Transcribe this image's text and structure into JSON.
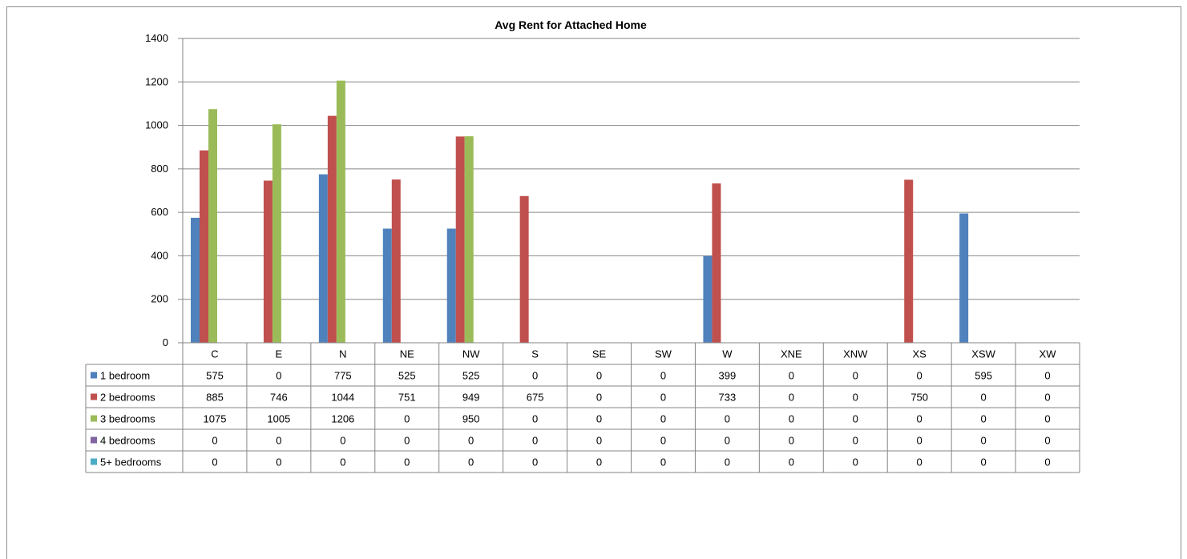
{
  "chart_data": {
    "type": "bar",
    "title": "Avg Rent for Attached Home",
    "categories": [
      "C",
      "E",
      "N",
      "NE",
      "NW",
      "S",
      "SE",
      "SW",
      "W",
      "XNE",
      "XNW",
      "XS",
      "XSW",
      "XW"
    ],
    "ylim": [
      0,
      1400
    ],
    "yticks": [
      0,
      200,
      400,
      600,
      800,
      1000,
      1200,
      1400
    ],
    "grid": true,
    "legend": "data-table",
    "series": [
      {
        "name": "1 bedroom",
        "color": "#4f81bd",
        "values": [
          575,
          0,
          775,
          525,
          525,
          0,
          0,
          0,
          399,
          0,
          0,
          0,
          595,
          0
        ]
      },
      {
        "name": "2 bedrooms",
        "color": "#c0504d",
        "values": [
          885,
          746,
          1044,
          751,
          949,
          675,
          0,
          0,
          733,
          0,
          0,
          750,
          0,
          0
        ]
      },
      {
        "name": "3 bedrooms",
        "color": "#9bbb59",
        "values": [
          1075,
          1005,
          1206,
          0,
          950,
          0,
          0,
          0,
          0,
          0,
          0,
          0,
          0,
          0
        ]
      },
      {
        "name": "4 bedrooms",
        "color": "#8064a2",
        "values": [
          0,
          0,
          0,
          0,
          0,
          0,
          0,
          0,
          0,
          0,
          0,
          0,
          0,
          0
        ]
      },
      {
        "name": "5+ bedrooms",
        "color": "#4bacc6",
        "values": [
          0,
          0,
          0,
          0,
          0,
          0,
          0,
          0,
          0,
          0,
          0,
          0,
          0,
          0
        ]
      }
    ]
  }
}
